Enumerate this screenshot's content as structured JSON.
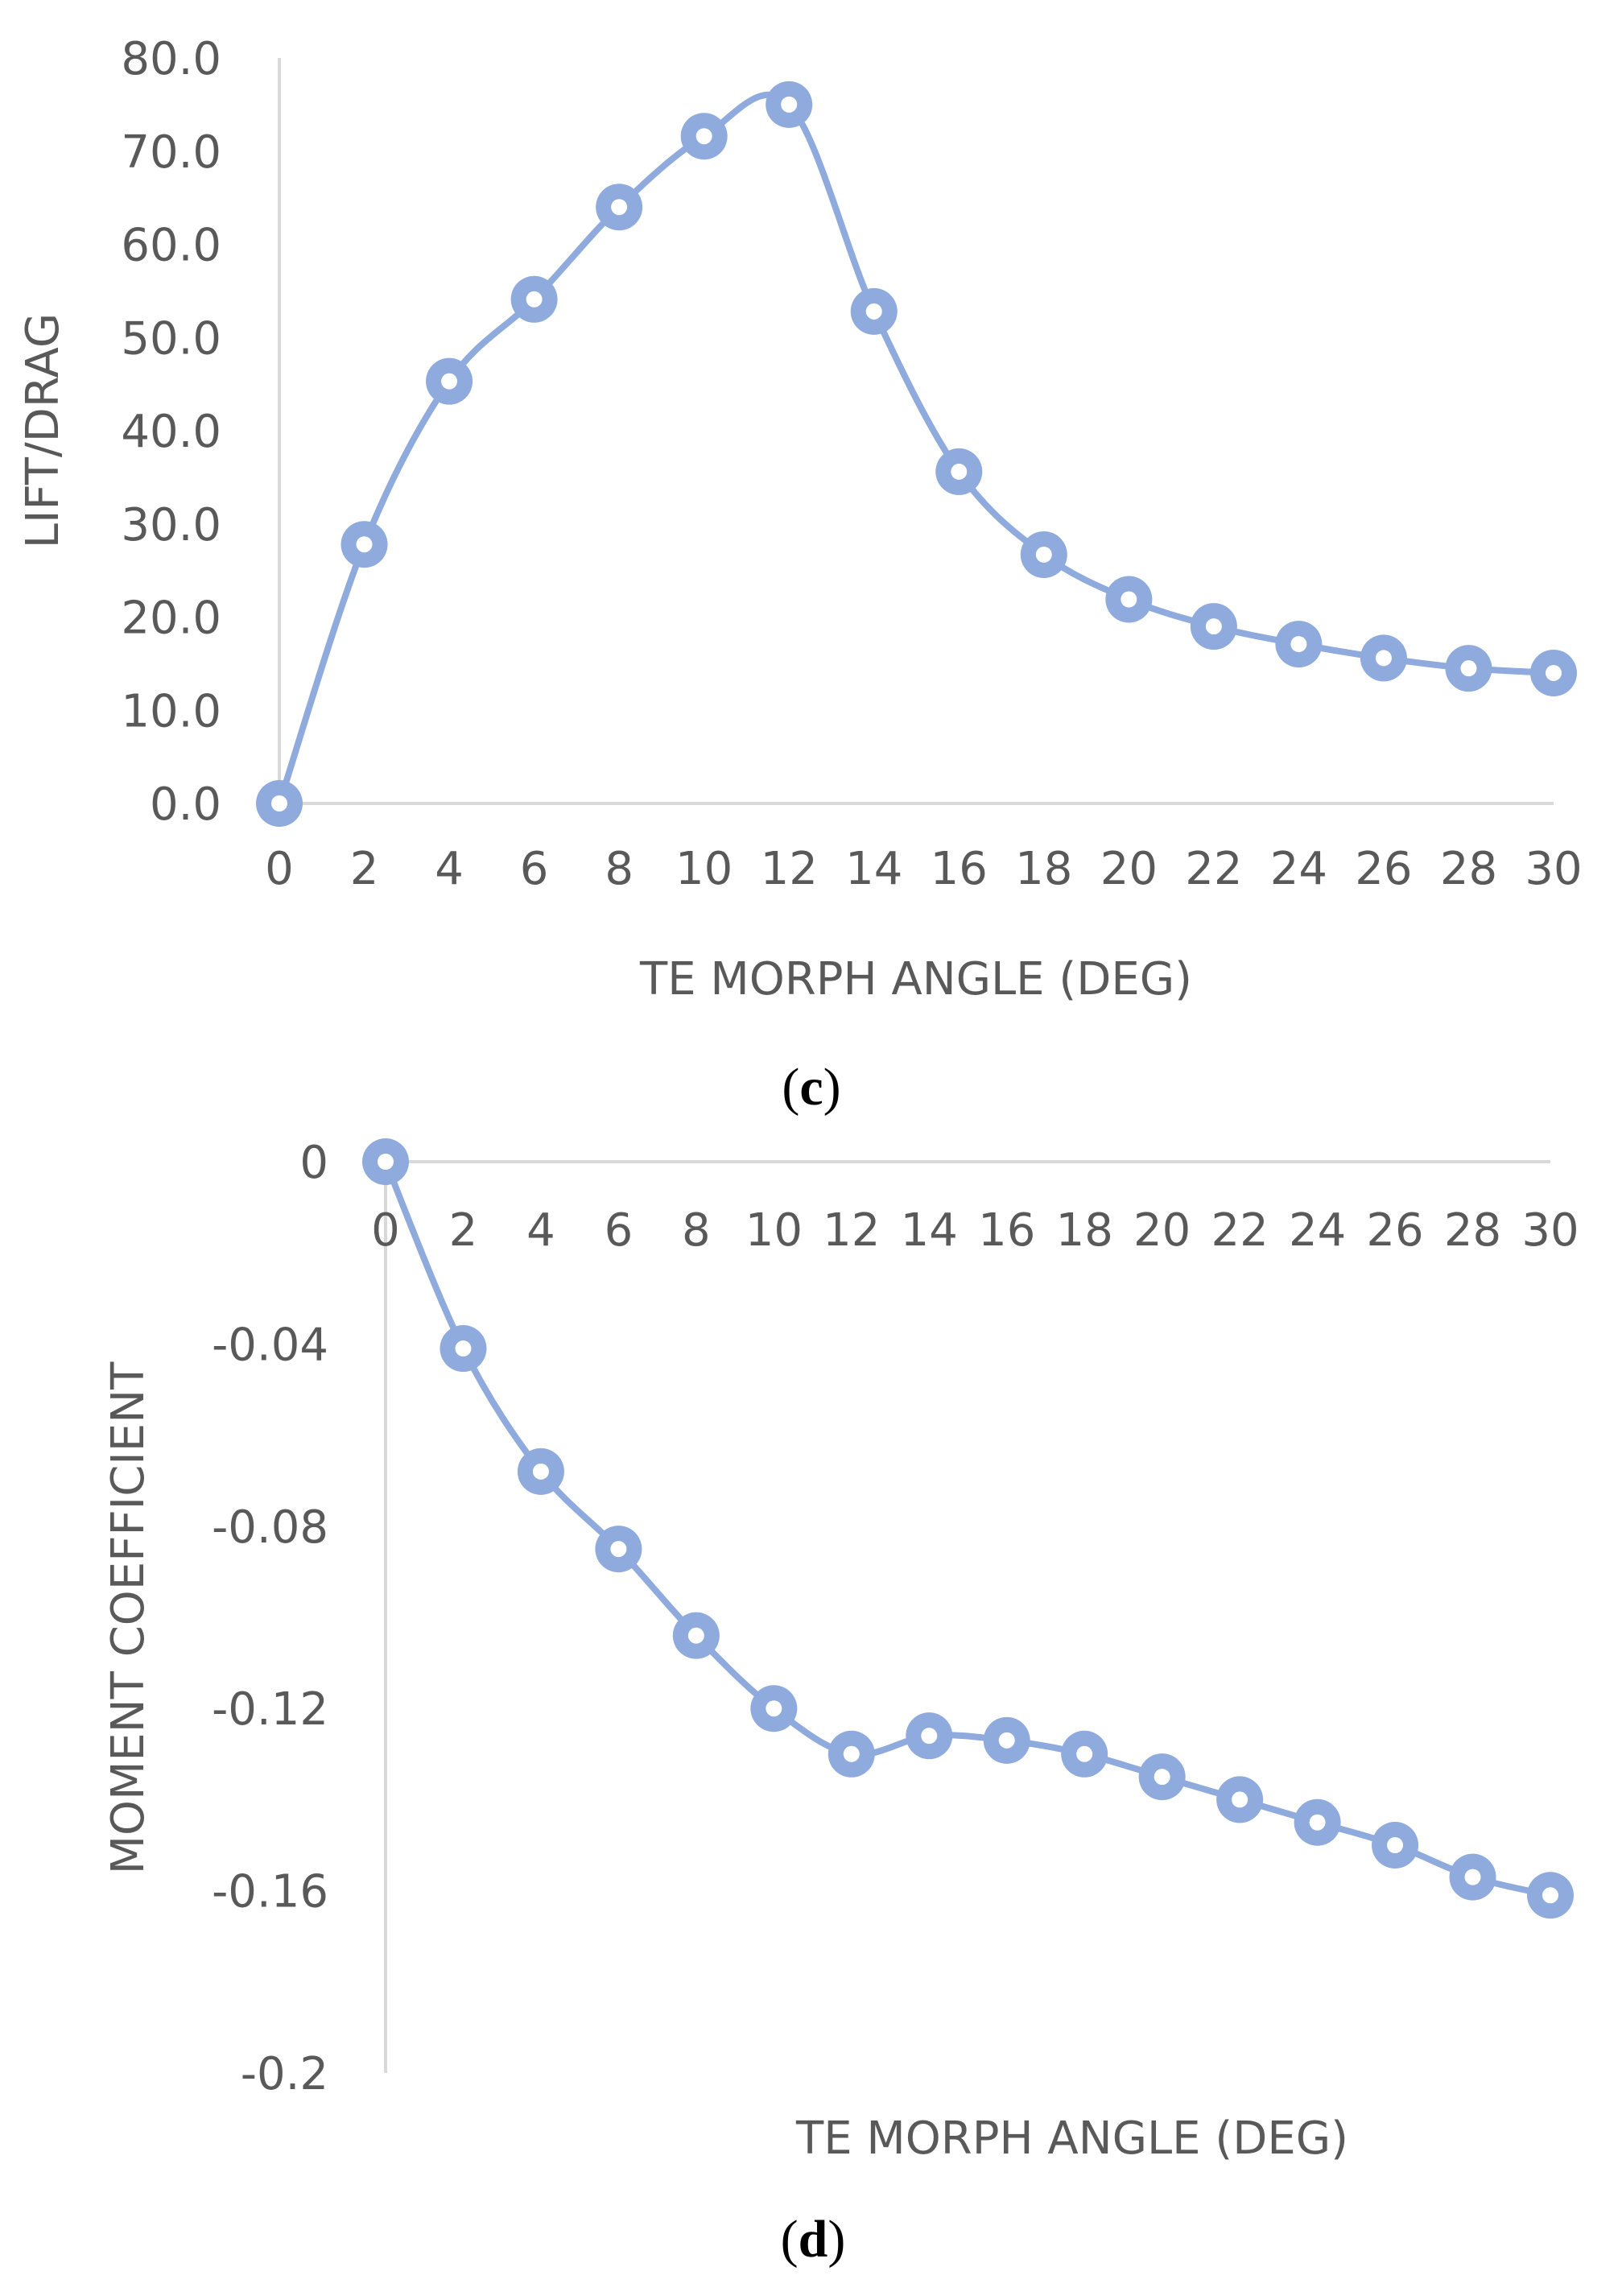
{
  "chart_data": [
    {
      "type": "line",
      "panel_label": "c",
      "xlabel": "TE MORPH ANGLE (DEG)",
      "ylabel": "LIFT/DRAG",
      "x": [
        0,
        2,
        4,
        6,
        8,
        10,
        12,
        14,
        16,
        18,
        20,
        22,
        24,
        26,
        28,
        30
      ],
      "y_ticks": [
        "0.0",
        "10.0",
        "20.0",
        "30.0",
        "40.0",
        "50.0",
        "60.0",
        "70.0",
        "80.0"
      ],
      "x_ticks": [
        "0",
        "2",
        "4",
        "6",
        "8",
        "10",
        "12",
        "14",
        "16",
        "18",
        "20",
        "22",
        "24",
        "26",
        "28",
        "30"
      ],
      "ylim": [
        0,
        80
      ],
      "xlim": [
        0,
        30
      ],
      "grid": false,
      "smooth": true,
      "series": [
        {
          "values": [
            0.0,
            27.8,
            45.3,
            54.1,
            64.0,
            71.6,
            75.0,
            52.8,
            35.6,
            26.7,
            21.9,
            19.0,
            17.1,
            15.6,
            14.5,
            14.0
          ],
          "color": "#8faadc"
        }
      ]
    },
    {
      "type": "line",
      "panel_label": "d",
      "xlabel": "TE MORPH ANGLE (DEG)",
      "ylabel": "MOMENT COEFFICIENT",
      "x": [
        0,
        2,
        4,
        6,
        8,
        10,
        12,
        14,
        16,
        18,
        20,
        22,
        24,
        26,
        28,
        30
      ],
      "y_ticks": [
        "0",
        "-0.04",
        "-0.08",
        "-0.12",
        "-0.16",
        "-0.2"
      ],
      "x_ticks": [
        "0",
        "2",
        "4",
        "6",
        "8",
        "10",
        "12",
        "14",
        "16",
        "18",
        "20",
        "22",
        "24",
        "26",
        "28",
        "30"
      ],
      "ylim": [
        -0.2,
        0
      ],
      "xlim": [
        0,
        30
      ],
      "grid": false,
      "smooth": true,
      "series": [
        {
          "values": [
            0.0,
            -0.041,
            -0.068,
            -0.085,
            -0.104,
            -0.12,
            -0.13,
            -0.126,
            -0.127,
            -0.13,
            -0.135,
            -0.14,
            -0.145,
            -0.15,
            -0.157,
            -0.161
          ],
          "color": "#8faadc"
        }
      ]
    }
  ]
}
